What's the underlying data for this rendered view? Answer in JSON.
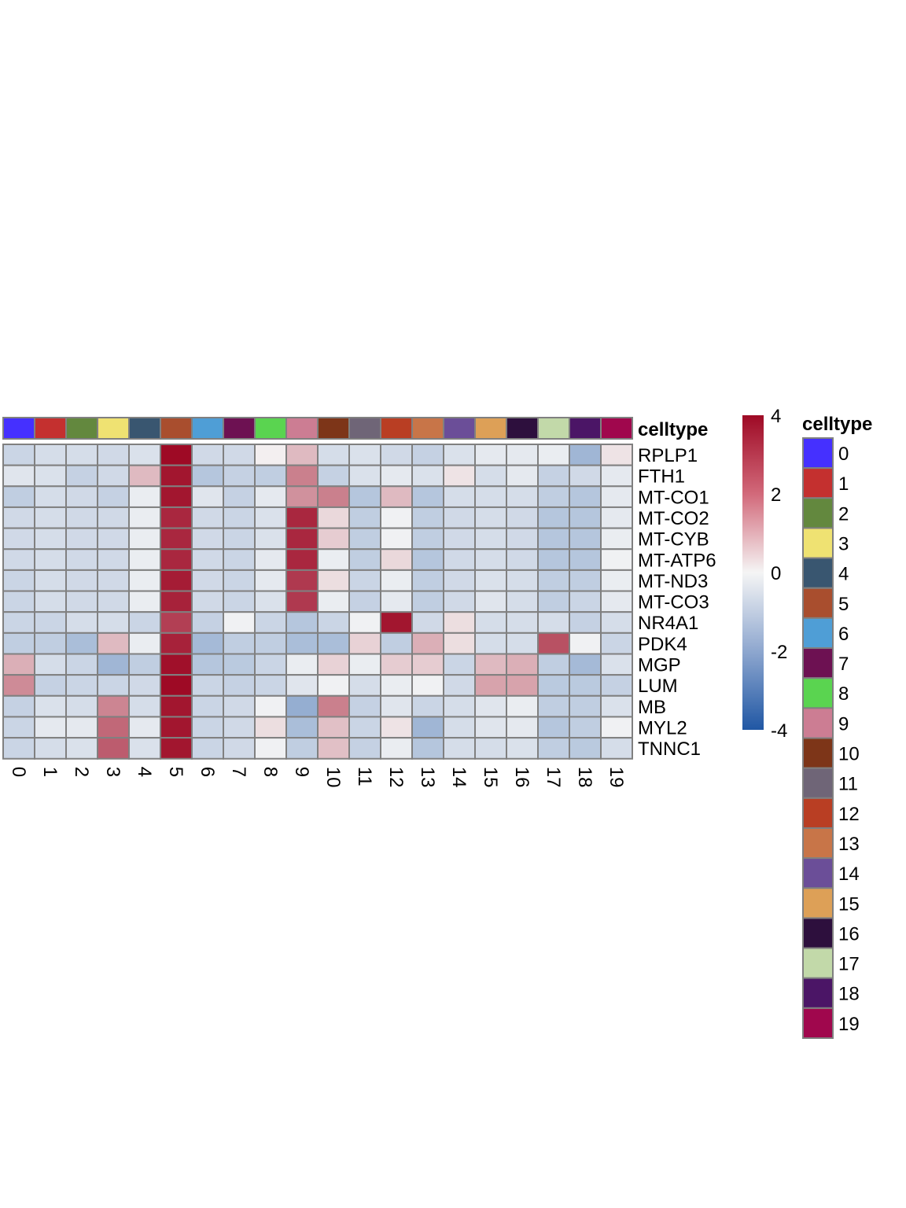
{
  "chart_data": {
    "type": "heatmap",
    "columns": [
      "0",
      "1",
      "2",
      "3",
      "4",
      "5",
      "6",
      "7",
      "8",
      "9",
      "10",
      "11",
      "12",
      "13",
      "14",
      "15",
      "16",
      "17",
      "18",
      "19"
    ],
    "rows": [
      "RPLP1",
      "FTH1",
      "MT-CO1",
      "MT-CO2",
      "MT-CYB",
      "MT-ATP6",
      "MT-ND3",
      "MT-CO3",
      "NR4A1",
      "PDK4",
      "MGP",
      "LUM",
      "MB",
      "MYL2",
      "TNNC1"
    ],
    "values": [
      [
        -0.8,
        -0.6,
        -0.6,
        -0.7,
        -0.5,
        4.2,
        -0.7,
        -0.7,
        0.1,
        1.0,
        -0.6,
        -0.5,
        -0.7,
        -0.9,
        -0.5,
        -0.3,
        -0.3,
        -0.2,
        -1.6,
        0.3
      ],
      [
        -0.4,
        -0.5,
        -0.9,
        -0.7,
        1.0,
        3.8,
        -1.2,
        -0.9,
        -1.0,
        2.0,
        -0.9,
        -0.5,
        -0.3,
        -0.5,
        0.3,
        -0.6,
        -0.3,
        -0.9,
        -0.7,
        -0.3
      ],
      [
        -1.0,
        -0.6,
        -0.7,
        -0.9,
        -0.2,
        3.8,
        -0.4,
        -0.9,
        -0.3,
        1.7,
        2.0,
        -1.2,
        1.0,
        -1.2,
        -0.6,
        -0.6,
        -0.6,
        -1.0,
        -1.2,
        -0.3
      ],
      [
        -0.7,
        -0.6,
        -0.7,
        -0.7,
        -0.2,
        3.5,
        -0.7,
        -0.8,
        -0.5,
        3.5,
        0.5,
        -1.0,
        -0.1,
        -1.0,
        -0.7,
        -0.6,
        -0.7,
        -1.2,
        -1.2,
        -0.3
      ],
      [
        -0.7,
        -0.6,
        -0.7,
        -0.7,
        -0.2,
        3.5,
        -0.7,
        -0.8,
        -0.5,
        3.5,
        0.7,
        -1.0,
        -0.1,
        -1.0,
        -0.7,
        -0.6,
        -0.7,
        -1.2,
        -1.2,
        -0.2
      ],
      [
        -0.7,
        -0.6,
        -0.7,
        -0.7,
        -0.2,
        3.5,
        -0.7,
        -0.8,
        -0.3,
        3.5,
        -0.2,
        -1.0,
        0.5,
        -1.2,
        -0.7,
        -0.6,
        -0.7,
        -1.2,
        -1.2,
        -0.1
      ],
      [
        -0.8,
        -0.6,
        -0.7,
        -0.7,
        -0.2,
        3.7,
        -0.7,
        -0.8,
        -0.3,
        3.2,
        0.4,
        -0.8,
        -0.2,
        -1.0,
        -0.7,
        -0.5,
        -0.6,
        -1.0,
        -1.0,
        -0.2
      ],
      [
        -0.8,
        -0.6,
        -0.7,
        -0.7,
        -0.2,
        3.6,
        -0.7,
        -0.8,
        -0.5,
        3.2,
        -0.2,
        -0.9,
        -0.3,
        -1.0,
        -0.7,
        -0.4,
        -0.6,
        -1.0,
        -0.8,
        -0.3
      ],
      [
        -0.8,
        -0.8,
        -0.6,
        -0.6,
        -0.8,
        3.1,
        -0.9,
        -0.1,
        -0.8,
        -1.2,
        -0.8,
        -0.1,
        3.8,
        -0.7,
        0.4,
        -0.6,
        -0.6,
        -0.6,
        -0.9,
        -0.6
      ],
      [
        -1.0,
        -1.0,
        -1.4,
        1.0,
        -0.2,
        3.6,
        -1.5,
        -1.0,
        -1.0,
        -1.4,
        -1.4,
        0.6,
        -1.0,
        1.2,
        0.4,
        -0.6,
        -0.6,
        2.8,
        -0.1,
        -0.8
      ],
      [
        1.2,
        -0.6,
        -0.8,
        -1.6,
        -1.0,
        3.9,
        -1.2,
        -1.1,
        -0.8,
        -0.2,
        0.6,
        -0.2,
        0.7,
        0.7,
        -0.8,
        1.0,
        1.2,
        -1.0,
        -1.5,
        -0.5
      ],
      [
        1.8,
        -0.9,
        -0.8,
        -0.8,
        -0.7,
        4.1,
        -0.8,
        -0.9,
        -0.8,
        -0.4,
        -0.1,
        -0.6,
        -0.2,
        -0.1,
        -0.7,
        1.4,
        1.4,
        -1.1,
        -1.1,
        -0.9
      ],
      [
        -0.9,
        -0.5,
        -0.6,
        1.9,
        -0.6,
        3.8,
        -0.8,
        -0.7,
        -0.1,
        -1.8,
        2.0,
        -0.9,
        -0.4,
        -0.8,
        -0.6,
        -0.4,
        -0.2,
        -1.0,
        -1.0,
        -0.5
      ],
      [
        -0.8,
        -0.3,
        -0.3,
        2.4,
        -0.3,
        3.8,
        -0.8,
        -0.7,
        0.4,
        -1.4,
        0.9,
        -0.8,
        0.3,
        -1.6,
        -0.6,
        -0.4,
        -0.3,
        -1.2,
        -1.0,
        -0.1
      ],
      [
        -0.8,
        -0.6,
        -0.5,
        2.6,
        -0.5,
        3.8,
        -0.8,
        -0.7,
        -0.1,
        -1.0,
        0.9,
        -0.9,
        -0.2,
        -1.2,
        -0.6,
        -0.6,
        -0.5,
        -1.0,
        -1.1,
        -0.6
      ]
    ],
    "annotation": {
      "name": "celltype",
      "colors": [
        "#4530FF",
        "#C4302F",
        "#63883E",
        "#EFE272",
        "#395670",
        "#A94E2E",
        "#4F9ED6",
        "#6D1152",
        "#5AD450",
        "#CC7D93",
        "#7D3518",
        "#6F6577",
        "#B93E23",
        "#C87548",
        "#6B4E98",
        "#DDA057",
        "#2D0F3D",
        "#C2D9A9",
        "#4B1566",
        "#A0074D"
      ]
    },
    "color_scale": {
      "min": -4,
      "max": 4,
      "ticks": [
        "4",
        "2",
        "0",
        "-2",
        "-4"
      ],
      "low_color": "#2057A4",
      "mid_color": "#F5F5F5",
      "high_color": "#9E0A25"
    },
    "legend": {
      "title": "celltype",
      "labels": [
        "0",
        "1",
        "2",
        "3",
        "4",
        "5",
        "6",
        "7",
        "8",
        "9",
        "10",
        "11",
        "12",
        "13",
        "14",
        "15",
        "16",
        "17",
        "18",
        "19"
      ]
    }
  }
}
